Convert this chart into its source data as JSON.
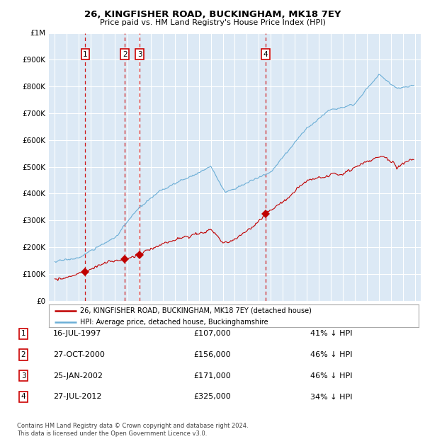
{
  "title": "26, KINGFISHER ROAD, BUCKINGHAM, MK18 7EY",
  "subtitle": "Price paid vs. HM Land Registry's House Price Index (HPI)",
  "ylim": [
    0,
    1000000
  ],
  "yticks": [
    0,
    100000,
    200000,
    300000,
    400000,
    500000,
    600000,
    700000,
    800000,
    900000,
    1000000
  ],
  "ytick_labels": [
    "£0",
    "£100K",
    "£200K",
    "£300K",
    "£400K",
    "£500K",
    "£600K",
    "£700K",
    "£800K",
    "£900K",
    "£1M"
  ],
  "plot_bg_color": "#dce9f5",
  "grid_color": "#ffffff",
  "hpi_line_color": "#6baed6",
  "price_line_color": "#c00000",
  "sale_marker_color": "#c00000",
  "dashed_line_color": "#cc0000",
  "label_border_color": "#cc0000",
  "sales": [
    {
      "date_num": 1997.54,
      "price": 107000,
      "label": "1"
    },
    {
      "date_num": 2000.83,
      "price": 156000,
      "label": "2"
    },
    {
      "date_num": 2002.07,
      "price": 171000,
      "label": "3"
    },
    {
      "date_num": 2012.57,
      "price": 325000,
      "label": "4"
    }
  ],
  "legend_line1": "26, KINGFISHER ROAD, BUCKINGHAM, MK18 7EY (detached house)",
  "legend_line2": "HPI: Average price, detached house, Buckinghamshire",
  "table_rows": [
    {
      "num": "1",
      "date": "16-JUL-1997",
      "price": "£107,000",
      "hpi": "41% ↓ HPI"
    },
    {
      "num": "2",
      "date": "27-OCT-2000",
      "price": "£156,000",
      "hpi": "46% ↓ HPI"
    },
    {
      "num": "3",
      "date": "25-JAN-2002",
      "price": "£171,000",
      "hpi": "46% ↓ HPI"
    },
    {
      "num": "4",
      "date": "27-JUL-2012",
      "price": "£325,000",
      "hpi": "34% ↓ HPI"
    }
  ],
  "footnote": "Contains HM Land Registry data © Crown copyright and database right 2024.\nThis data is licensed under the Open Government Licence v3.0.",
  "xmin": 1994.5,
  "xmax": 2025.5
}
